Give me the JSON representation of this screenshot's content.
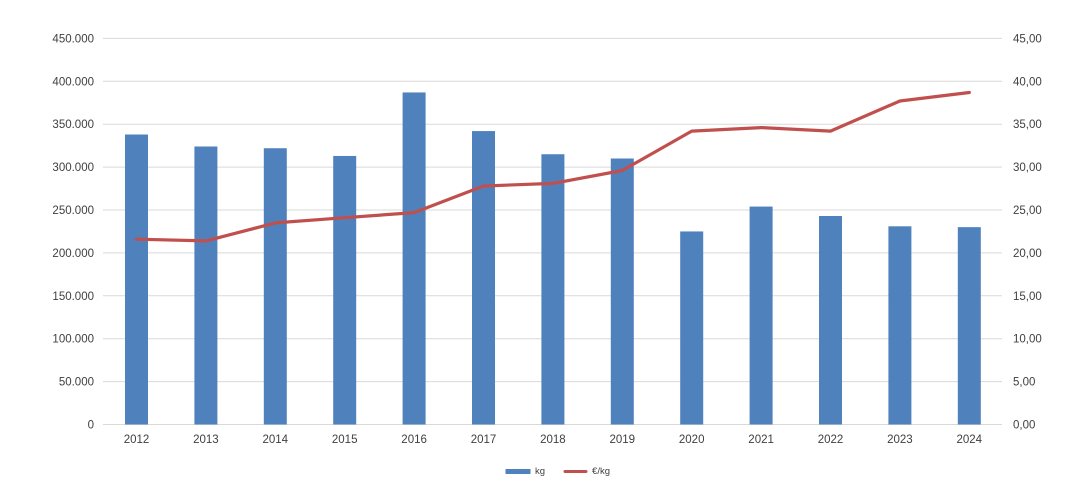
{
  "chart_data": {
    "type": "combo-bar-line",
    "categories": [
      "2012",
      "2013",
      "2014",
      "2015",
      "2016",
      "2017",
      "2018",
      "2019",
      "2020",
      "2021",
      "2022",
      "2023",
      "2024"
    ],
    "series": [
      {
        "name": "kg",
        "type": "bar",
        "axis": "left",
        "color": "#4f81bd",
        "values": [
          338000,
          324000,
          322000,
          313000,
          387000,
          342000,
          315000,
          310000,
          225000,
          254000,
          243000,
          231000,
          230000
        ]
      },
      {
        "name": "€/kg",
        "type": "line",
        "axis": "right",
        "color": "#c0504d",
        "values": [
          21.6,
          21.4,
          23.5,
          24.1,
          24.7,
          27.8,
          28.1,
          29.6,
          34.2,
          34.6,
          34.2,
          37.7,
          38.7
        ]
      }
    ],
    "left_axis": {
      "min": 0,
      "max": 450000,
      "step": 50000,
      "tick_labels": [
        "0",
        "50.000",
        "100.000",
        "150.000",
        "200.000",
        "250.000",
        "300.000",
        "350.000",
        "400.000",
        "450.000"
      ]
    },
    "right_axis": {
      "min": 0,
      "max": 45,
      "step": 5,
      "tick_labels": [
        "0,00",
        "5,00",
        "10,00",
        "15,00",
        "20,00",
        "25,00",
        "30,00",
        "35,00",
        "40,00",
        "45,00"
      ]
    },
    "title": "",
    "xlabel": "",
    "ylabel": "",
    "grid": true,
    "legend_position": "bottom",
    "colors": {
      "gridline": "#d9d9d9",
      "axis_text": "#404040",
      "background": "#ffffff"
    }
  },
  "legend": {
    "items": [
      {
        "label": "kg",
        "marker": "rect",
        "color": "#4f81bd"
      },
      {
        "label": "€/kg",
        "marker": "line",
        "color": "#c0504d"
      }
    ]
  }
}
